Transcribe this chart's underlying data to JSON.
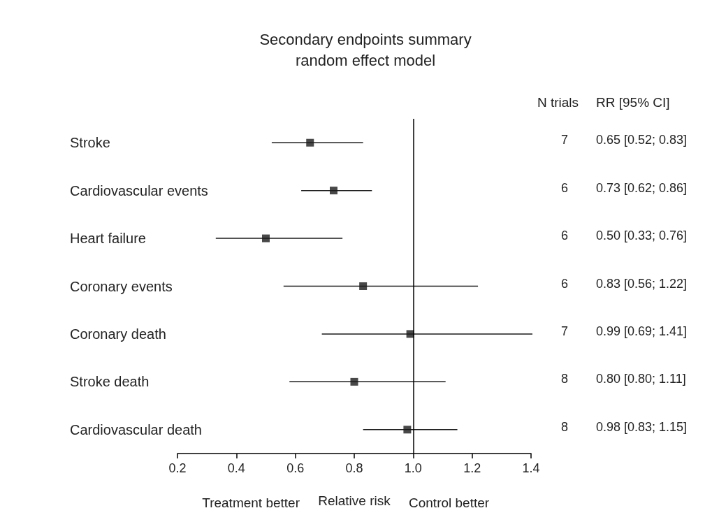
{
  "chart_data": {
    "type": "scatter",
    "orientation": "horizontal",
    "title": "Secondary endpoints summary\nrandom effect model",
    "xlabel": "Relative risk",
    "categories": [
      "Stroke",
      "Cardiovascular events",
      "Heart failure",
      "Coronary events",
      "Coronary death",
      "Stroke death",
      "Cardiovascular death"
    ],
    "values": [
      0.65,
      0.73,
      0.5,
      0.83,
      0.99,
      0.8,
      0.98
    ],
    "errors": [
      [
        0.52,
        0.83
      ],
      [
        0.62,
        0.86
      ],
      [
        0.33,
        0.76
      ],
      [
        0.56,
        1.22
      ],
      [
        0.69,
        1.41
      ],
      [
        0.58,
        1.11
      ],
      [
        0.83,
        1.15
      ]
    ],
    "value_labels": [
      "0.65 [0.52; 0.83]",
      "0.73 [0.62; 0.86]",
      "0.50 [0.33; 0.76]",
      "0.83 [0.56; 1.22]",
      "0.99 [0.69; 1.41]",
      "0.80 [0.80; 1.11]",
      "0.98 [0.83; 1.15]"
    ],
    "color": "#1a1a1a",
    "marker": "square",
    "xlim": [
      0.2,
      1.4
    ],
    "xticks": [
      0.2,
      0.4,
      0.6,
      0.8,
      {
        "value": 1,
        "label": "1.0"
      },
      1.2,
      1.4
    ],
    "ref_lines": [
      {
        "axis": "x",
        "value": 1
      }
    ],
    "annotations": [
      "N trials",
      "RR [95% CI]",
      "Treatment better",
      "Control better",
      "7",
      "6",
      "6",
      "6",
      "7",
      "8",
      "8"
    ],
    "grid": false
  }
}
